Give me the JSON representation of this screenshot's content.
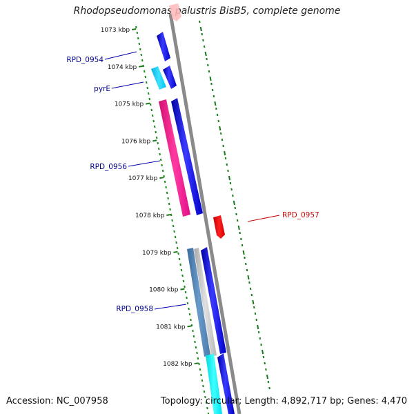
{
  "title": "Rhodopseudomonas palustris BisB5, complete genome",
  "footer": {
    "accession": "Accession: NC_007958",
    "summary": "Topology: circular; Length: 4,892,717 bp; Genes: 4,470"
  },
  "ruler": {
    "ticks": [
      "1073 kbp",
      "1074 kbp",
      "1075 kbp",
      "1076 kbp",
      "1077 kbp",
      "1078 kbp",
      "1079 kbp",
      "1080 kbp",
      "1081 kbp",
      "1082 kbp"
    ]
  },
  "genes": [
    {
      "name": "RPD_0954",
      "color": "#00008b"
    },
    {
      "name": "pyrE",
      "color": "#00008b"
    },
    {
      "name": "RPD_0956",
      "color": "#00008b"
    },
    {
      "name": "RPD_0957",
      "color": "#cc0000"
    },
    {
      "name": "RPD_0958",
      "color": "#00008b"
    }
  ]
}
